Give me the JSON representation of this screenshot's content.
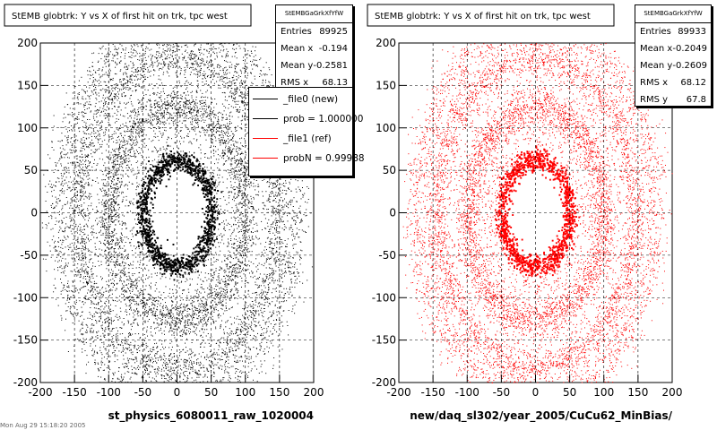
{
  "chart_data": [
    {
      "type": "scatter",
      "title": "StEMB globtrk: Y vs X of first hit on trk, tpc west",
      "xlabel": "st_physics_6080011_raw_1020004",
      "ylabel": "",
      "xlim": [
        -200,
        200
      ],
      "ylim": [
        -200,
        200
      ],
      "x_ticks": [
        -200,
        -150,
        -100,
        -50,
        0,
        50,
        100,
        150,
        200
      ],
      "y_ticks": [
        -200,
        -150,
        -100,
        -50,
        0,
        50,
        100,
        150,
        200
      ],
      "color": "#000000",
      "grid": true,
      "stats": {
        "name": "StEMBGaGrkXfYfW",
        "entries": "89925",
        "mean_x": "-0.194",
        "mean_y": "-0.2581",
        "rms_x": "68.13"
      }
    },
    {
      "type": "scatter",
      "title": "StEMB globtrk: Y vs X of first hit on trk, tpc west",
      "xlabel": "new/daq_sl302/year_2005/CuCu62_MinBias/",
      "ylabel": "",
      "xlim": [
        -200,
        200
      ],
      "ylim": [
        -200,
        200
      ],
      "x_ticks": [
        -200,
        -150,
        -100,
        -50,
        0,
        50,
        100,
        150,
        200
      ],
      "y_ticks": [
        -200,
        -150,
        -100,
        -50,
        0,
        50,
        100,
        150,
        200
      ],
      "color": "#ff0000",
      "grid": true,
      "stats": {
        "name": "StEMBGaGrkXfYfW",
        "entries": "89933",
        "mean_x": "-0.2049",
        "mean_y": "-0.2609",
        "rms_x": "68.12",
        "rms_y": "67.8"
      }
    }
  ],
  "stats_labels": {
    "entries": "Entries",
    "mean_x": "Mean x",
    "mean_y": "Mean y",
    "rms_x": "RMS x",
    "rms_y": "RMS y"
  },
  "legend": [
    {
      "label": "_file0 (new)",
      "color": "#000000"
    },
    {
      "label": "prob = 1.000000",
      "color": "#000000"
    },
    {
      "label": "_file1 (ref)",
      "color": "#ff0000"
    },
    {
      "label": "probN = 0.99988",
      "color": "#ff0000"
    }
  ],
  "footer": "Mon Aug 29 15:18:20 2005"
}
